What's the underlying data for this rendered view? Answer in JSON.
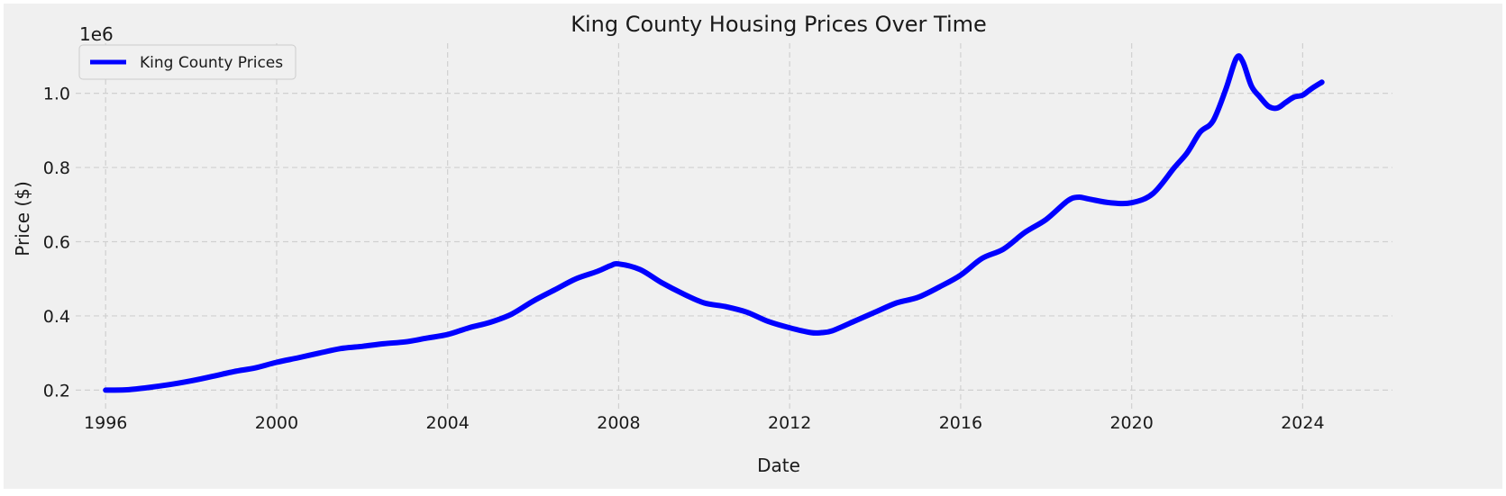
{
  "chart_data": {
    "type": "line",
    "title": "King County Housing Prices Over Time",
    "xlabel": "Date",
    "ylabel": "Price ($)",
    "y_scale_label": "1e6",
    "xlim": [
      1995.3,
      2026.1
    ],
    "ylim": [
      150000,
      1135000
    ],
    "x_ticks": [
      1996,
      2000,
      2004,
      2008,
      2012,
      2016,
      2020,
      2024
    ],
    "x_tick_labels": [
      "1996",
      "2000",
      "2004",
      "2008",
      "2012",
      "2016",
      "2020",
      "2024"
    ],
    "y_ticks": [
      200000,
      400000,
      600000,
      800000,
      1000000
    ],
    "y_tick_labels": [
      "0.2",
      "0.4",
      "0.6",
      "0.8",
      "1.0"
    ],
    "grid": true,
    "legend_position": "top-left",
    "background_color": "#f0f0f0",
    "line_color": "#0000ff",
    "series": [
      {
        "name": "King County Prices",
        "color": "#0000ff",
        "x": [
          1996.0,
          1996.5,
          1997.0,
          1997.5,
          1998.0,
          1998.5,
          1999.0,
          1999.5,
          2000.0,
          2000.5,
          2001.0,
          2001.5,
          2002.0,
          2002.5,
          2003.0,
          2003.5,
          2004.0,
          2004.5,
          2005.0,
          2005.5,
          2006.0,
          2006.5,
          2007.0,
          2007.5,
          2007.8,
          2008.0,
          2008.5,
          2009.0,
          2009.5,
          2010.0,
          2010.5,
          2011.0,
          2011.5,
          2012.0,
          2012.5,
          2012.75,
          2013.0,
          2013.5,
          2014.0,
          2014.5,
          2015.0,
          2015.5,
          2016.0,
          2016.5,
          2017.0,
          2017.5,
          2018.0,
          2018.5,
          2018.75,
          2019.0,
          2019.5,
          2020.0,
          2020.5,
          2021.0,
          2021.3,
          2021.6,
          2021.9,
          2022.2,
          2022.45,
          2022.6,
          2022.8,
          2023.0,
          2023.2,
          2023.4,
          2023.6,
          2023.8,
          2024.0,
          2024.2,
          2024.45
        ],
        "y": [
          200000,
          201000,
          207000,
          215000,
          225000,
          237000,
          250000,
          260000,
          275000,
          287000,
          300000,
          312000,
          318000,
          325000,
          330000,
          340000,
          350000,
          368000,
          383000,
          405000,
          440000,
          470000,
          500000,
          520000,
          535000,
          540000,
          525000,
          490000,
          460000,
          435000,
          425000,
          410000,
          385000,
          368000,
          355000,
          355000,
          360000,
          385000,
          410000,
          435000,
          450000,
          478000,
          510000,
          555000,
          580000,
          625000,
          660000,
          710000,
          720000,
          715000,
          705000,
          705000,
          730000,
          800000,
          840000,
          895000,
          925000,
          1010000,
          1095000,
          1085000,
          1020000,
          990000,
          965000,
          960000,
          975000,
          990000,
          995000,
          1012000,
          1030000
        ]
      }
    ]
  }
}
